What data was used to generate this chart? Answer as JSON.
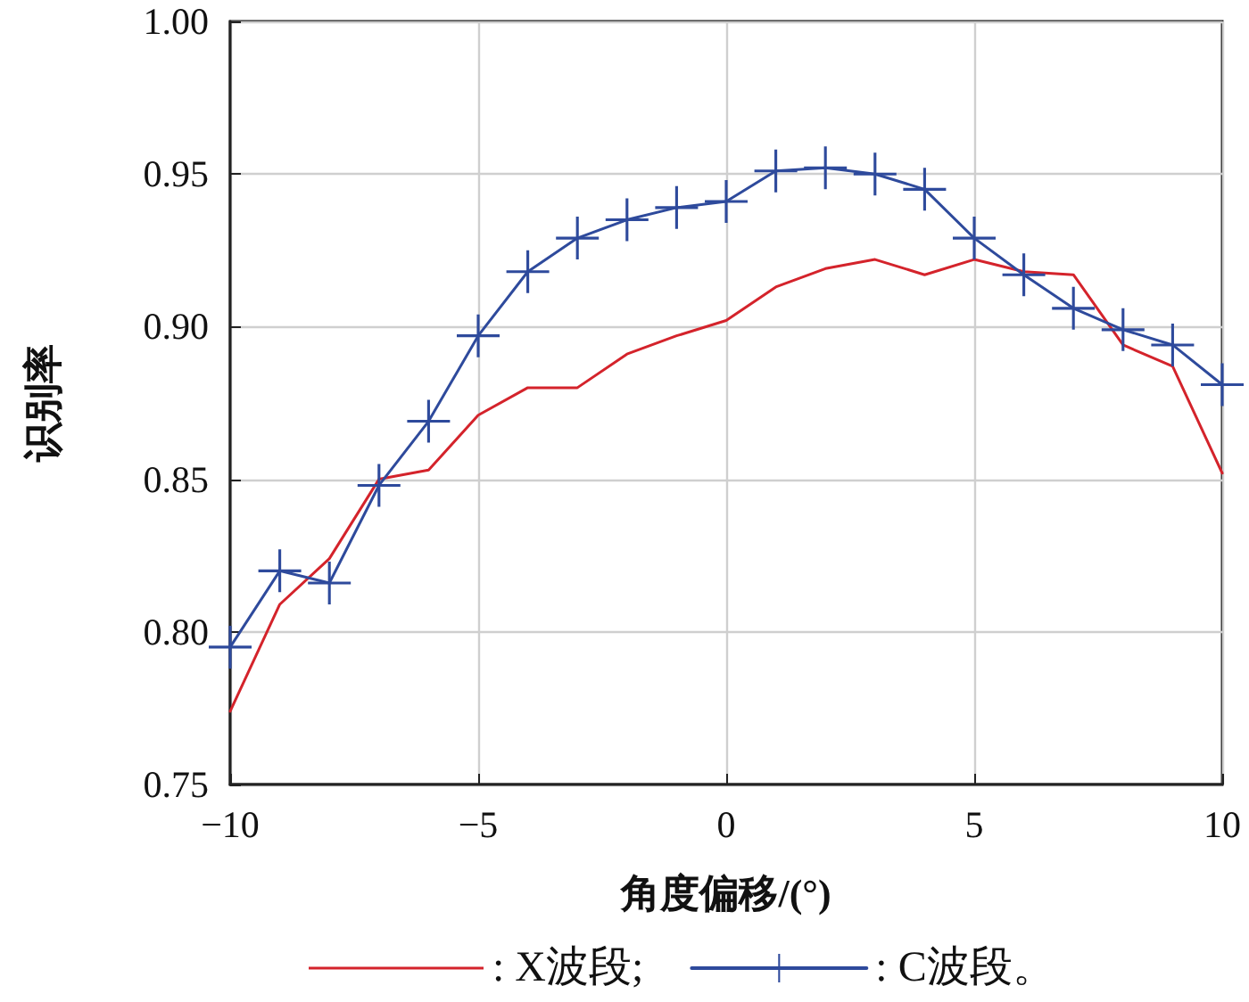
{
  "chart_data": {
    "type": "line",
    "xlabel": "角度偏移/(°)",
    "ylabel": "识别率",
    "x": [
      -10,
      -9,
      -8,
      -7,
      -6,
      -5,
      -4,
      -3,
      -2,
      -1,
      0,
      1,
      2,
      3,
      4,
      5,
      6,
      7,
      8,
      9,
      10
    ],
    "series": [
      {
        "name": ": X波段;",
        "color": "#d4232b",
        "marker": "none",
        "values": [
          0.774,
          0.809,
          0.824,
          0.85,
          0.853,
          0.871,
          0.88,
          0.88,
          0.891,
          0.897,
          0.902,
          0.913,
          0.919,
          0.922,
          0.917,
          0.922,
          0.918,
          0.917,
          0.894,
          0.887,
          0.852
        ]
      },
      {
        "name": ": C波段。",
        "color": "#2e4a9c",
        "marker": "cross",
        "values": [
          0.795,
          0.82,
          0.816,
          0.848,
          0.869,
          0.897,
          0.918,
          0.929,
          0.935,
          0.939,
          0.941,
          0.951,
          0.952,
          0.95,
          0.945,
          0.929,
          0.917,
          0.906,
          0.899,
          0.894,
          0.881
        ]
      }
    ],
    "xlim": [
      -10,
      10
    ],
    "xticks": [
      {
        "value": -10,
        "label": "−10"
      },
      {
        "value": -5,
        "label": "−5"
      },
      0,
      5,
      10
    ],
    "ylim": [
      0.75,
      1.0
    ],
    "yticks": [
      0.75,
      {
        "value": 0.8,
        "label": "0.80"
      },
      0.85,
      {
        "value": 0.9,
        "label": "0.90"
      },
      0.95,
      {
        "value": 1.0,
        "label": "1.00"
      }
    ],
    "grid": true,
    "legend": "bottom",
    "line_style": "solid"
  }
}
